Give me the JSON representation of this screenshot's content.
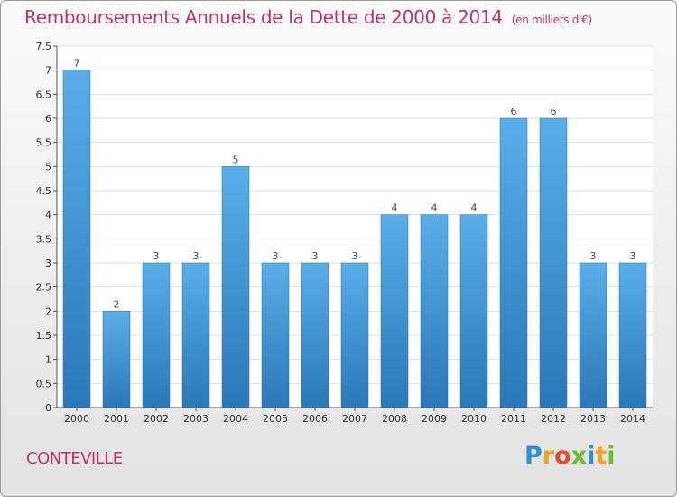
{
  "chart_data": {
    "type": "bar",
    "title": "Remboursements Annuels de la Dette de 2000 à 2014",
    "unit_note": "(en milliers d'€)",
    "categories": [
      "2000",
      "2001",
      "2002",
      "2003",
      "2004",
      "2005",
      "2006",
      "2007",
      "2008",
      "2009",
      "2010",
      "2011",
      "2012",
      "2013",
      "2014"
    ],
    "values": [
      7,
      2,
      3,
      3,
      5,
      3,
      3,
      3,
      4,
      4,
      4,
      6,
      6,
      3,
      3
    ],
    "value_labels": [
      "7",
      "2",
      "3",
      "3",
      "5",
      "3",
      "3",
      "3",
      "4",
      "4",
      "4",
      "6",
      "6",
      "3",
      "3"
    ],
    "y_ticks": [
      "0",
      "0.5",
      "1",
      "1.5",
      "2",
      "2.5",
      "3",
      "3.5",
      "4",
      "4.5",
      "5",
      "5.5",
      "6",
      "6.5",
      "7",
      "7.5"
    ],
    "ylim": [
      0,
      7.5
    ],
    "grid": true,
    "bar_color_top": "#5aaee8",
    "bar_color_bottom": "#2a78b9"
  },
  "commune": "CONTEVILLE",
  "logo": {
    "letters": [
      "P",
      "r",
      "o",
      "x",
      "i",
      "t",
      "i"
    ],
    "colors": [
      "#2e8fd6",
      "#f5a21a",
      "#e64c2e",
      "#6bbf2a",
      "#2e8fd6",
      "#f5a21a",
      "#6bbf2a"
    ]
  }
}
